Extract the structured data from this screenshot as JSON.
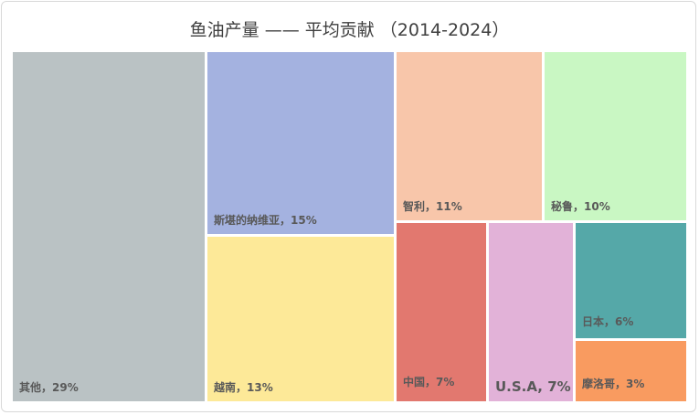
{
  "title": "鱼油产量 —— 平均贡献 （2014-2024）",
  "chart_data": {
    "type": "treemap",
    "title": "鱼油产量 —— 平均贡献 （2014-2024）",
    "unit": "%",
    "items": [
      {
        "name": "其他",
        "value": 29,
        "label": "其他，29%",
        "color": "#bac2c4"
      },
      {
        "name": "斯堪的纳维亚",
        "value": 15,
        "label": "斯堪的纳维亚，15%",
        "color": "#a4b2e0"
      },
      {
        "name": "越南",
        "value": 13,
        "label": "越南，13%",
        "color": "#fde998"
      },
      {
        "name": "智利",
        "value": 11,
        "label": "智利，11%",
        "color": "#f8c6aa"
      },
      {
        "name": "秘鲁",
        "value": 10,
        "label": "秘鲁，10%",
        "color": "#c9f7c3"
      },
      {
        "name": "中国",
        "value": 7,
        "label": "中国，7%",
        "color": "#e2786f"
      },
      {
        "name": "U.S.A",
        "value": 7,
        "label": "U.S.A, 7%",
        "color": "#e2b2d8"
      },
      {
        "name": "日本",
        "value": 6,
        "label": "日本，6%",
        "color": "#55a8a8"
      },
      {
        "name": "摩洛哥",
        "value": 3,
        "label": "摩洛哥，3%",
        "color": "#f99b60"
      }
    ]
  }
}
